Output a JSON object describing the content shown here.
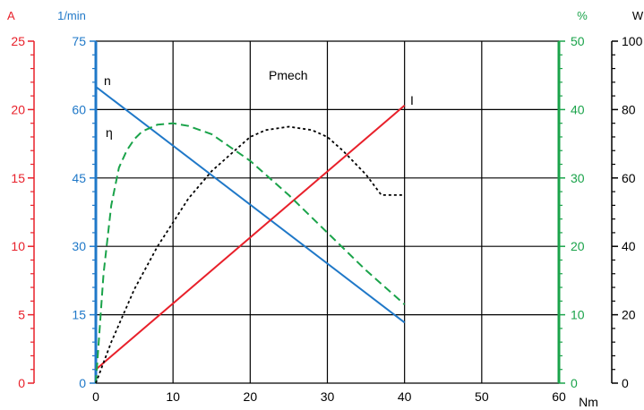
{
  "chart_data": {
    "type": "line",
    "x": {
      "label": "Nm",
      "range": [
        0,
        60
      ],
      "ticks": [
        "0",
        "10",
        "20",
        "30",
        "40",
        "50",
        "60"
      ]
    },
    "axes": [
      {
        "id": "A",
        "label": "A",
        "color": "#e8202a",
        "range": [
          0,
          25
        ],
        "ticks": [
          "0",
          "5",
          "10",
          "15",
          "20",
          "25"
        ]
      },
      {
        "id": "rpm",
        "label": "1/min",
        "color": "#1f78c8",
        "range": [
          0,
          75
        ],
        "ticks": [
          "0",
          "15",
          "30",
          "45",
          "60",
          "75"
        ]
      },
      {
        "id": "pct",
        "label": "%",
        "color": "#1aa34a",
        "range": [
          0,
          50
        ],
        "ticks": [
          "0",
          "10",
          "20",
          "30",
          "40",
          "50"
        ]
      },
      {
        "id": "W",
        "label": "W",
        "color": "#000000",
        "range": [
          0,
          100
        ],
        "ticks": [
          "0",
          "20",
          "40",
          "60",
          "80",
          "100"
        ]
      }
    ],
    "grid": true,
    "series": [
      {
        "name": "n",
        "axis": "rpm",
        "color": "#1f78c8",
        "style": "solid",
        "x": [
          0,
          40
        ],
        "y": [
          65,
          13.3
        ]
      },
      {
        "name": "I",
        "axis": "A",
        "color": "#e8202a",
        "style": "solid",
        "x": [
          0,
          40
        ],
        "y": [
          1.0,
          20.3
        ]
      },
      {
        "name": "η",
        "axis": "pct",
        "color": "#1aa34a",
        "style": "dashed",
        "x": [
          0,
          0.5,
          1,
          2,
          3,
          4,
          5,
          6,
          8,
          10,
          12,
          15,
          20,
          25,
          30,
          35,
          40
        ],
        "y": [
          0,
          8,
          16,
          26,
          31.5,
          34,
          35.7,
          36.8,
          37.8,
          38.0,
          37.6,
          36.4,
          32.5,
          27.5,
          22,
          16.5,
          11.5
        ]
      },
      {
        "name": "Pmech",
        "axis": "W",
        "color": "#000000",
        "style": "dotted",
        "x": [
          0,
          2,
          5,
          8,
          10,
          12,
          15,
          18,
          20,
          22,
          25,
          28,
          30,
          32,
          35,
          37,
          40
        ],
        "y": [
          0,
          12,
          27.5,
          40,
          47,
          54,
          62,
          68,
          72,
          74,
          75,
          74,
          72,
          68,
          61,
          55,
          55
        ]
      }
    ]
  }
}
